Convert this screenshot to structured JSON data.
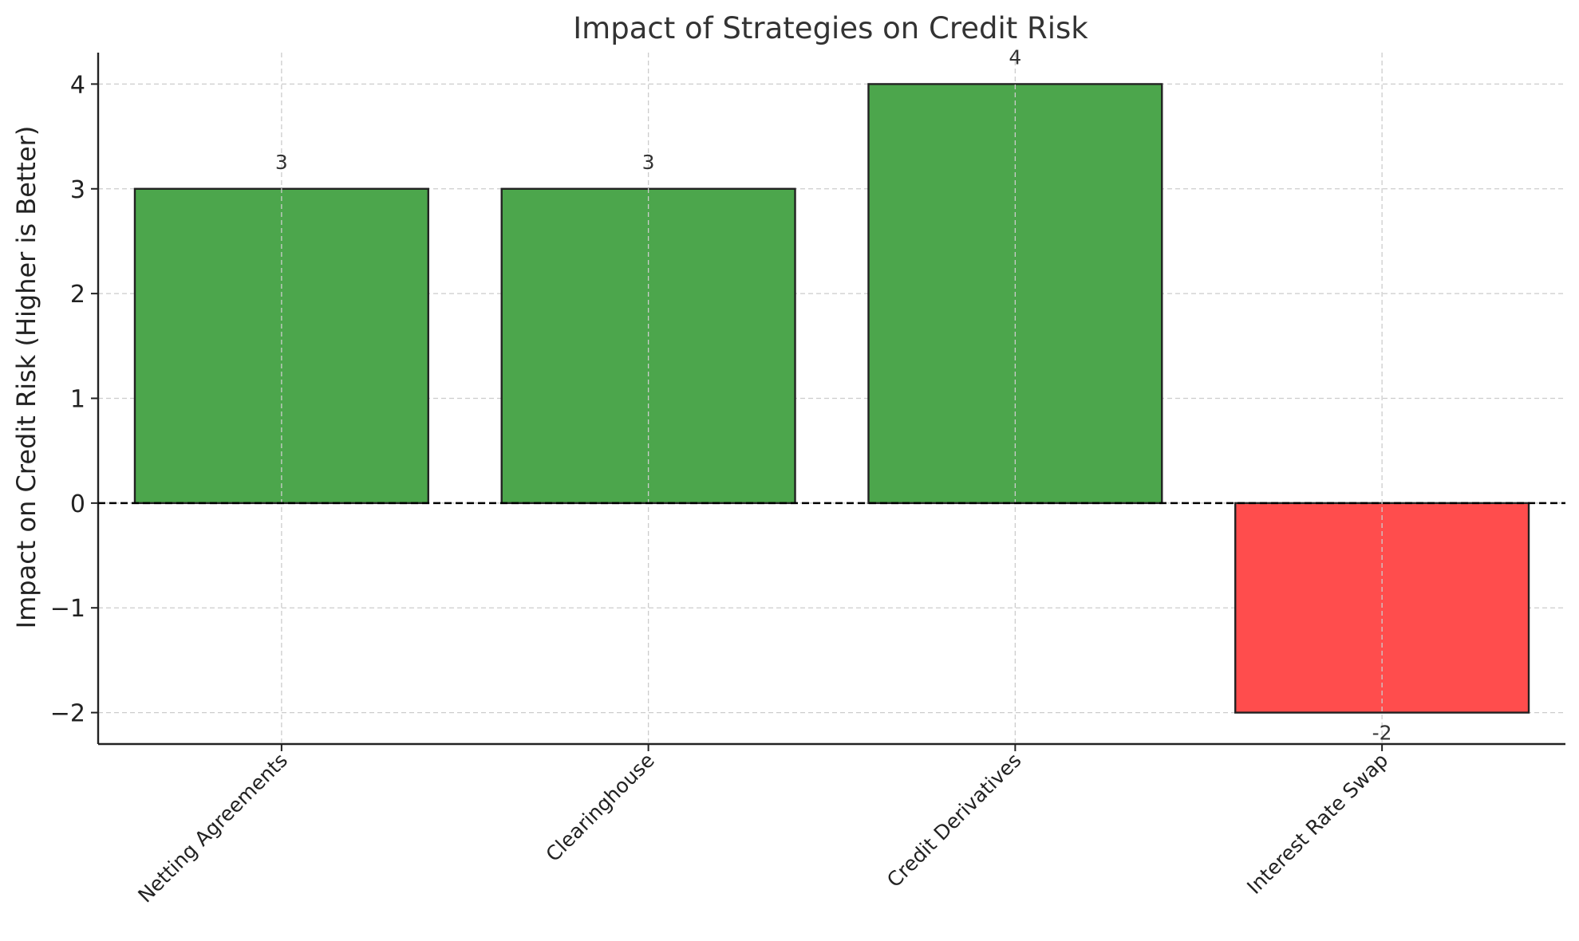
{
  "chart_data": {
    "type": "bar",
    "title": "Impact of Strategies on Credit Risk",
    "xlabel": "",
    "ylabel": "Impact on Credit Risk (Higher is Better)",
    "categories": [
      "Netting Agreements",
      "Clearinghouse",
      "Credit Derivatives",
      "Interest Rate Swap"
    ],
    "values": [
      3,
      3,
      4,
      -2
    ],
    "value_labels": [
      "3",
      "3",
      "4",
      "-2"
    ],
    "bar_colors": [
      "#4ca64c",
      "#4ca64c",
      "#4ca64c",
      "#ff4d4d"
    ],
    "ylim": [
      -2.3,
      4.3
    ],
    "yticks": [
      -2,
      -1,
      0,
      1,
      2,
      3,
      4
    ],
    "ytick_labels": [
      "−2",
      "−1",
      "0",
      "1",
      "2",
      "3",
      "4"
    ],
    "reference_line": 0,
    "grid": true,
    "legend": "none"
  }
}
